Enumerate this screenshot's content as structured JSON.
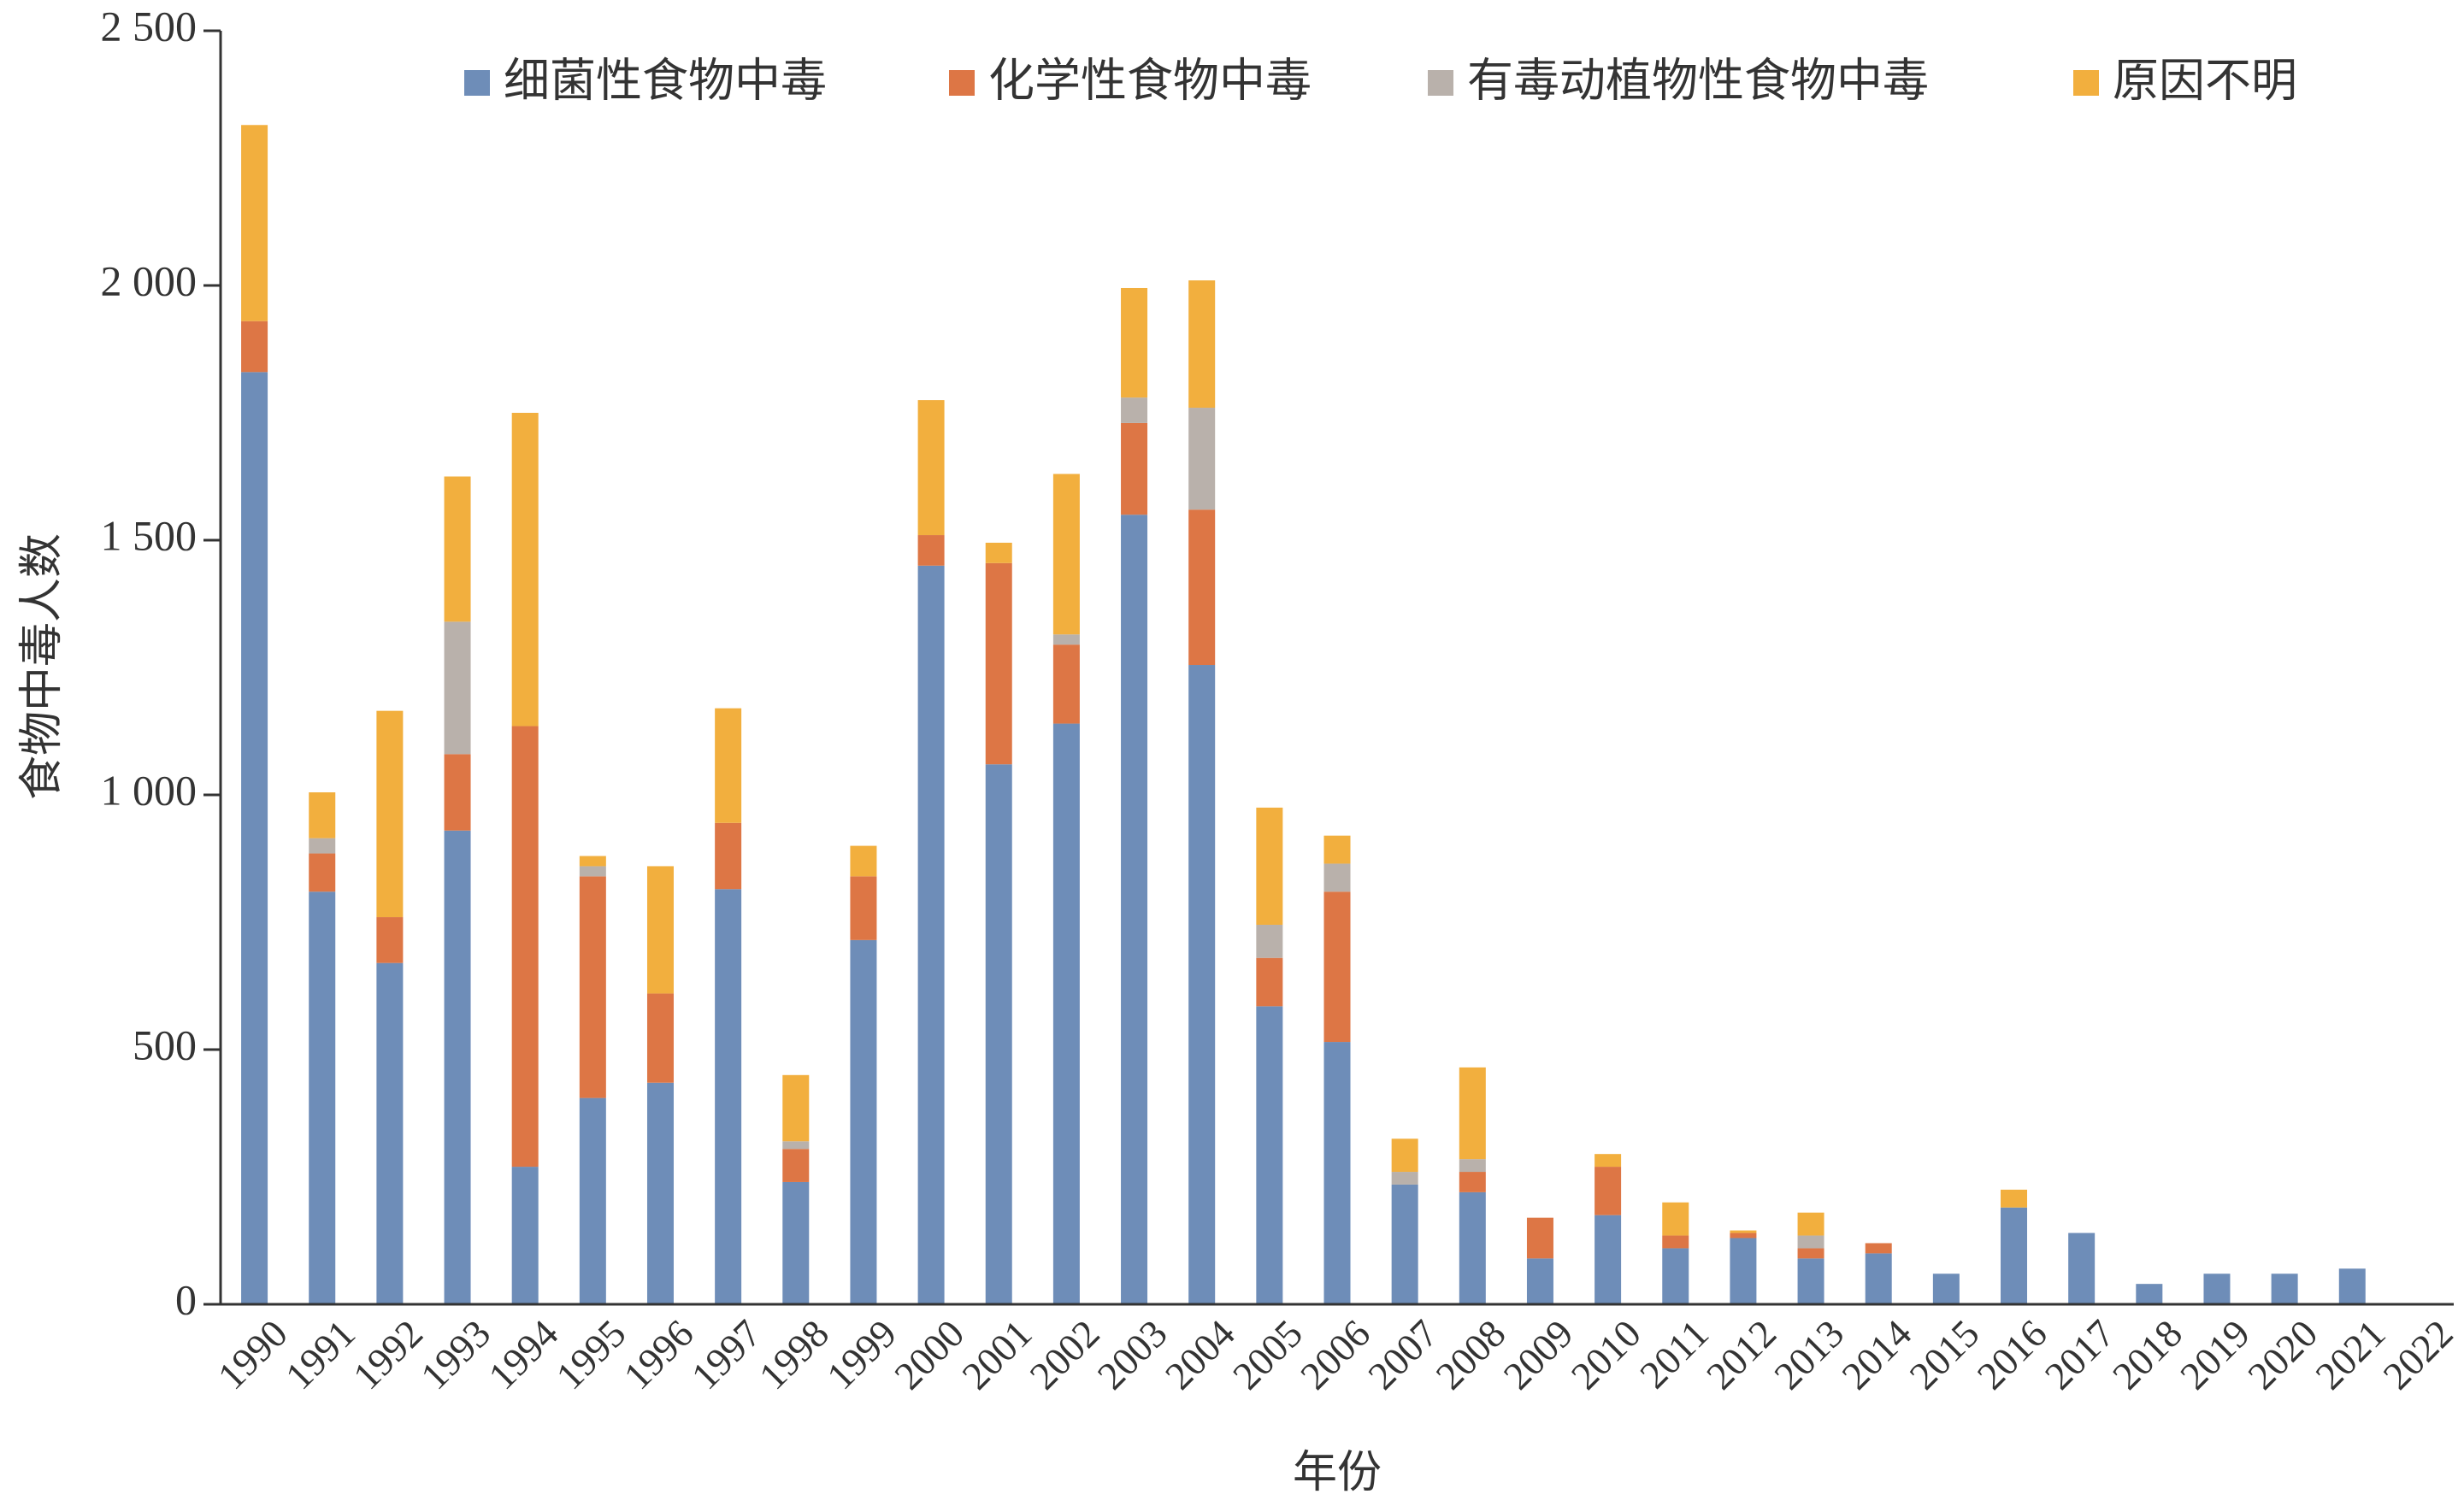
{
  "chart_data": {
    "type": "bar",
    "stacked": true,
    "title": "",
    "xlabel": "年份",
    "ylabel": "食物中毒人数",
    "ylim": [
      0,
      2500
    ],
    "yticks": [
      0,
      500,
      1000,
      1500,
      2000,
      2500
    ],
    "ytick_labels": [
      "0",
      "500",
      "1 000",
      "1 500",
      "2 000",
      "2 500"
    ],
    "grid": false,
    "legend_position": "top",
    "categories": [
      "1990",
      "1991",
      "1992",
      "1993",
      "1994",
      "1995",
      "1996",
      "1997",
      "1998",
      "1999",
      "2000",
      "2001",
      "2002",
      "2003",
      "2004",
      "2005",
      "2006",
      "2007",
      "2008",
      "2009",
      "2010",
      "2011",
      "2012",
      "2013",
      "2014",
      "2015",
      "2016",
      "2017",
      "2018",
      "2019",
      "2020",
      "2021",
      "2022"
    ],
    "series": [
      {
        "name": "细菌性食物中毒",
        "color": "#6e8db8",
        "values": [
          1830,
          810,
          670,
          930,
          270,
          405,
          435,
          815,
          240,
          715,
          1450,
          1060,
          1140,
          1550,
          1255,
          585,
          515,
          235,
          220,
          90,
          175,
          110,
          130,
          90,
          100,
          60,
          190,
          140,
          40,
          60,
          60,
          70,
          0
        ]
      },
      {
        "name": "化学性食物中毒",
        "color": "#dd7645",
        "values": [
          100,
          75,
          90,
          150,
          865,
          435,
          175,
          130,
          65,
          125,
          60,
          395,
          155,
          180,
          305,
          95,
          295,
          0,
          40,
          80,
          95,
          25,
          10,
          20,
          20,
          0,
          0,
          0,
          0,
          0,
          0,
          0,
          0
        ]
      },
      {
        "name": "有毒动植物性食物中毒",
        "color": "#b9b1ab",
        "values": [
          0,
          30,
          0,
          260,
          0,
          20,
          0,
          0,
          15,
          0,
          0,
          0,
          20,
          50,
          200,
          65,
          55,
          25,
          25,
          0,
          0,
          0,
          0,
          25,
          0,
          0,
          0,
          0,
          0,
          0,
          0,
          0,
          0
        ]
      },
      {
        "name": "原因不明",
        "color": "#f2af3e",
        "values": [
          385,
          90,
          405,
          285,
          615,
          20,
          250,
          225,
          130,
          60,
          265,
          40,
          315,
          215,
          250,
          230,
          55,
          65,
          180,
          0,
          25,
          65,
          5,
          45,
          0,
          0,
          35,
          0,
          0,
          0,
          0,
          0,
          0
        ]
      }
    ]
  }
}
